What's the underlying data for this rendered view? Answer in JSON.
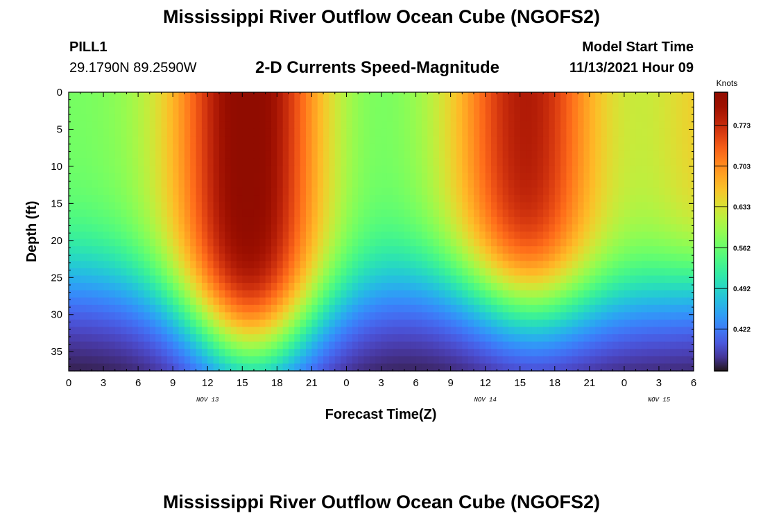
{
  "header": {
    "title": "Mississippi River Outflow Ocean Cube (NGOFS2)",
    "station": "PILL1",
    "coords": "29.1790N  89.2590W",
    "subtitle": "2-D Currents Speed-Magnitude",
    "model_start_label": "Model Start Time",
    "model_start_value": "11/13/2021 Hour 09"
  },
  "footer": {
    "title": "Mississippi River Outflow Ocean Cube (NGOFS2)"
  },
  "chart_data": {
    "type": "heatmap",
    "title": "2-D Currents Speed-Magnitude",
    "xlabel": "Forecast Time(Z)",
    "ylabel": "Depth (ft)",
    "x_tick_labels": [
      "0",
      "3",
      "6",
      "9",
      "12",
      "15",
      "18",
      "21",
      "0",
      "3",
      "6",
      "9",
      "12",
      "15",
      "18",
      "21",
      "0",
      "3",
      "6"
    ],
    "x_range_hours": [
      0,
      54
    ],
    "date_labels": [
      {
        "label": "NOV 13",
        "hour": 12
      },
      {
        "label": "NOV 14",
        "hour": 36
      },
      {
        "label": "NOV 15",
        "hour": 51
      }
    ],
    "y_tick_labels": [
      "0",
      "5",
      "10",
      "15",
      "20",
      "25",
      "30",
      "35"
    ],
    "y_range": [
      0,
      37.6
    ],
    "y_inverted": true,
    "colorbar": {
      "unit": "Knots",
      "tick_labels": [
        "0.773",
        "0.703",
        "0.633",
        "0.562",
        "0.492",
        "0.422"
      ],
      "range": [
        0.35,
        0.83
      ],
      "colormap": "turbo"
    },
    "speed_model": {
      "note": "Surface speed peaks near hour 16 (~0.83 kn) and hour 40 (~0.79 kn); minima near hours 1, 25 and 52; speed decreases with depth to ~0.35 kn at bottom.",
      "surface_peaks": [
        {
          "hour": 16,
          "value": 0.83
        },
        {
          "hour": 40,
          "value": 0.79
        }
      ],
      "surface_minima": [
        {
          "hour": 1,
          "value": 0.58
        },
        {
          "hour": 25,
          "value": 0.57
        },
        {
          "hour": 52,
          "value": 0.66
        }
      ],
      "bottom_value": 0.35
    }
  }
}
